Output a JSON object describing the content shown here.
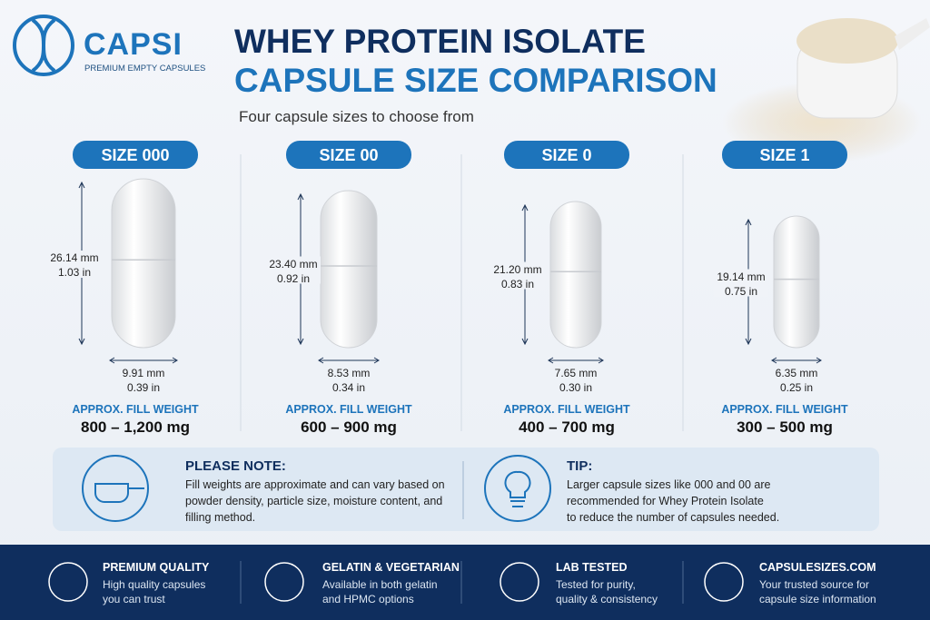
{
  "brand": {
    "name": "CAPSI",
    "tagline": "PREMIUM EMPTY CAPSULES"
  },
  "header": {
    "title_line1": "WHEY PROTEIN ISOLATE",
    "title_line2": "CAPSULE SIZE COMPARISON",
    "subtitle": "Four capsule sizes to choose from"
  },
  "capsules": [
    {
      "size": "SIZE 000",
      "length_mm": "26.14 mm",
      "length_in": "1.03 in",
      "width_mm": "9.91 mm",
      "width_in": "0.39 in",
      "fill_label": "APPROX. FILL WEIGHT",
      "fill_weight": "800 – 1,200 mg"
    },
    {
      "size": "SIZE 00",
      "length_mm": "23.40 mm",
      "length_in": "0.92 in",
      "width_mm": "8.53 mm",
      "width_in": "0.34 in",
      "fill_label": "APPROX. FILL WEIGHT",
      "fill_weight": "600 – 900 mg"
    },
    {
      "size": "SIZE 0",
      "length_mm": "21.20 mm",
      "length_in": "0.83 in",
      "width_mm": "7.65 mm",
      "width_in": "0.30 in",
      "fill_label": "APPROX. FILL WEIGHT",
      "fill_weight": "400 – 700 mg"
    },
    {
      "size": "SIZE 1",
      "length_mm": "19.14 mm",
      "length_in": "0.75 in",
      "width_mm": "6.35 mm",
      "width_in": "0.25 in",
      "fill_label": "APPROX. FILL WEIGHT",
      "fill_weight": "300 – 500 mg"
    }
  ],
  "notes": [
    {
      "title": "PLEASE NOTE:",
      "lines": [
        "Fill weights are approximate and can vary based on",
        "powder density, particle size, moisture content, and",
        "filling method."
      ]
    },
    {
      "title": "TIP:",
      "lines": [
        "Larger capsule sizes like 000 and 00 are",
        "recommended for Whey Protein Isolate",
        "to reduce the number of capsules needed."
      ]
    }
  ],
  "footer": [
    {
      "title": "PREMIUM QUALITY",
      "lines": [
        "High quality capsules",
        "you can trust"
      ]
    },
    {
      "title": "GELATIN & VEGETARIAN",
      "lines": [
        "Available in both gelatin",
        "and HPMC options"
      ]
    },
    {
      "title": "LAB TESTED",
      "lines": [
        "Tested for purity,",
        "quality & consistency"
      ]
    },
    {
      "title": "CAPSULESIZES.COM",
      "lines": [
        "Your trusted source for",
        "capsule size information"
      ]
    }
  ]
}
